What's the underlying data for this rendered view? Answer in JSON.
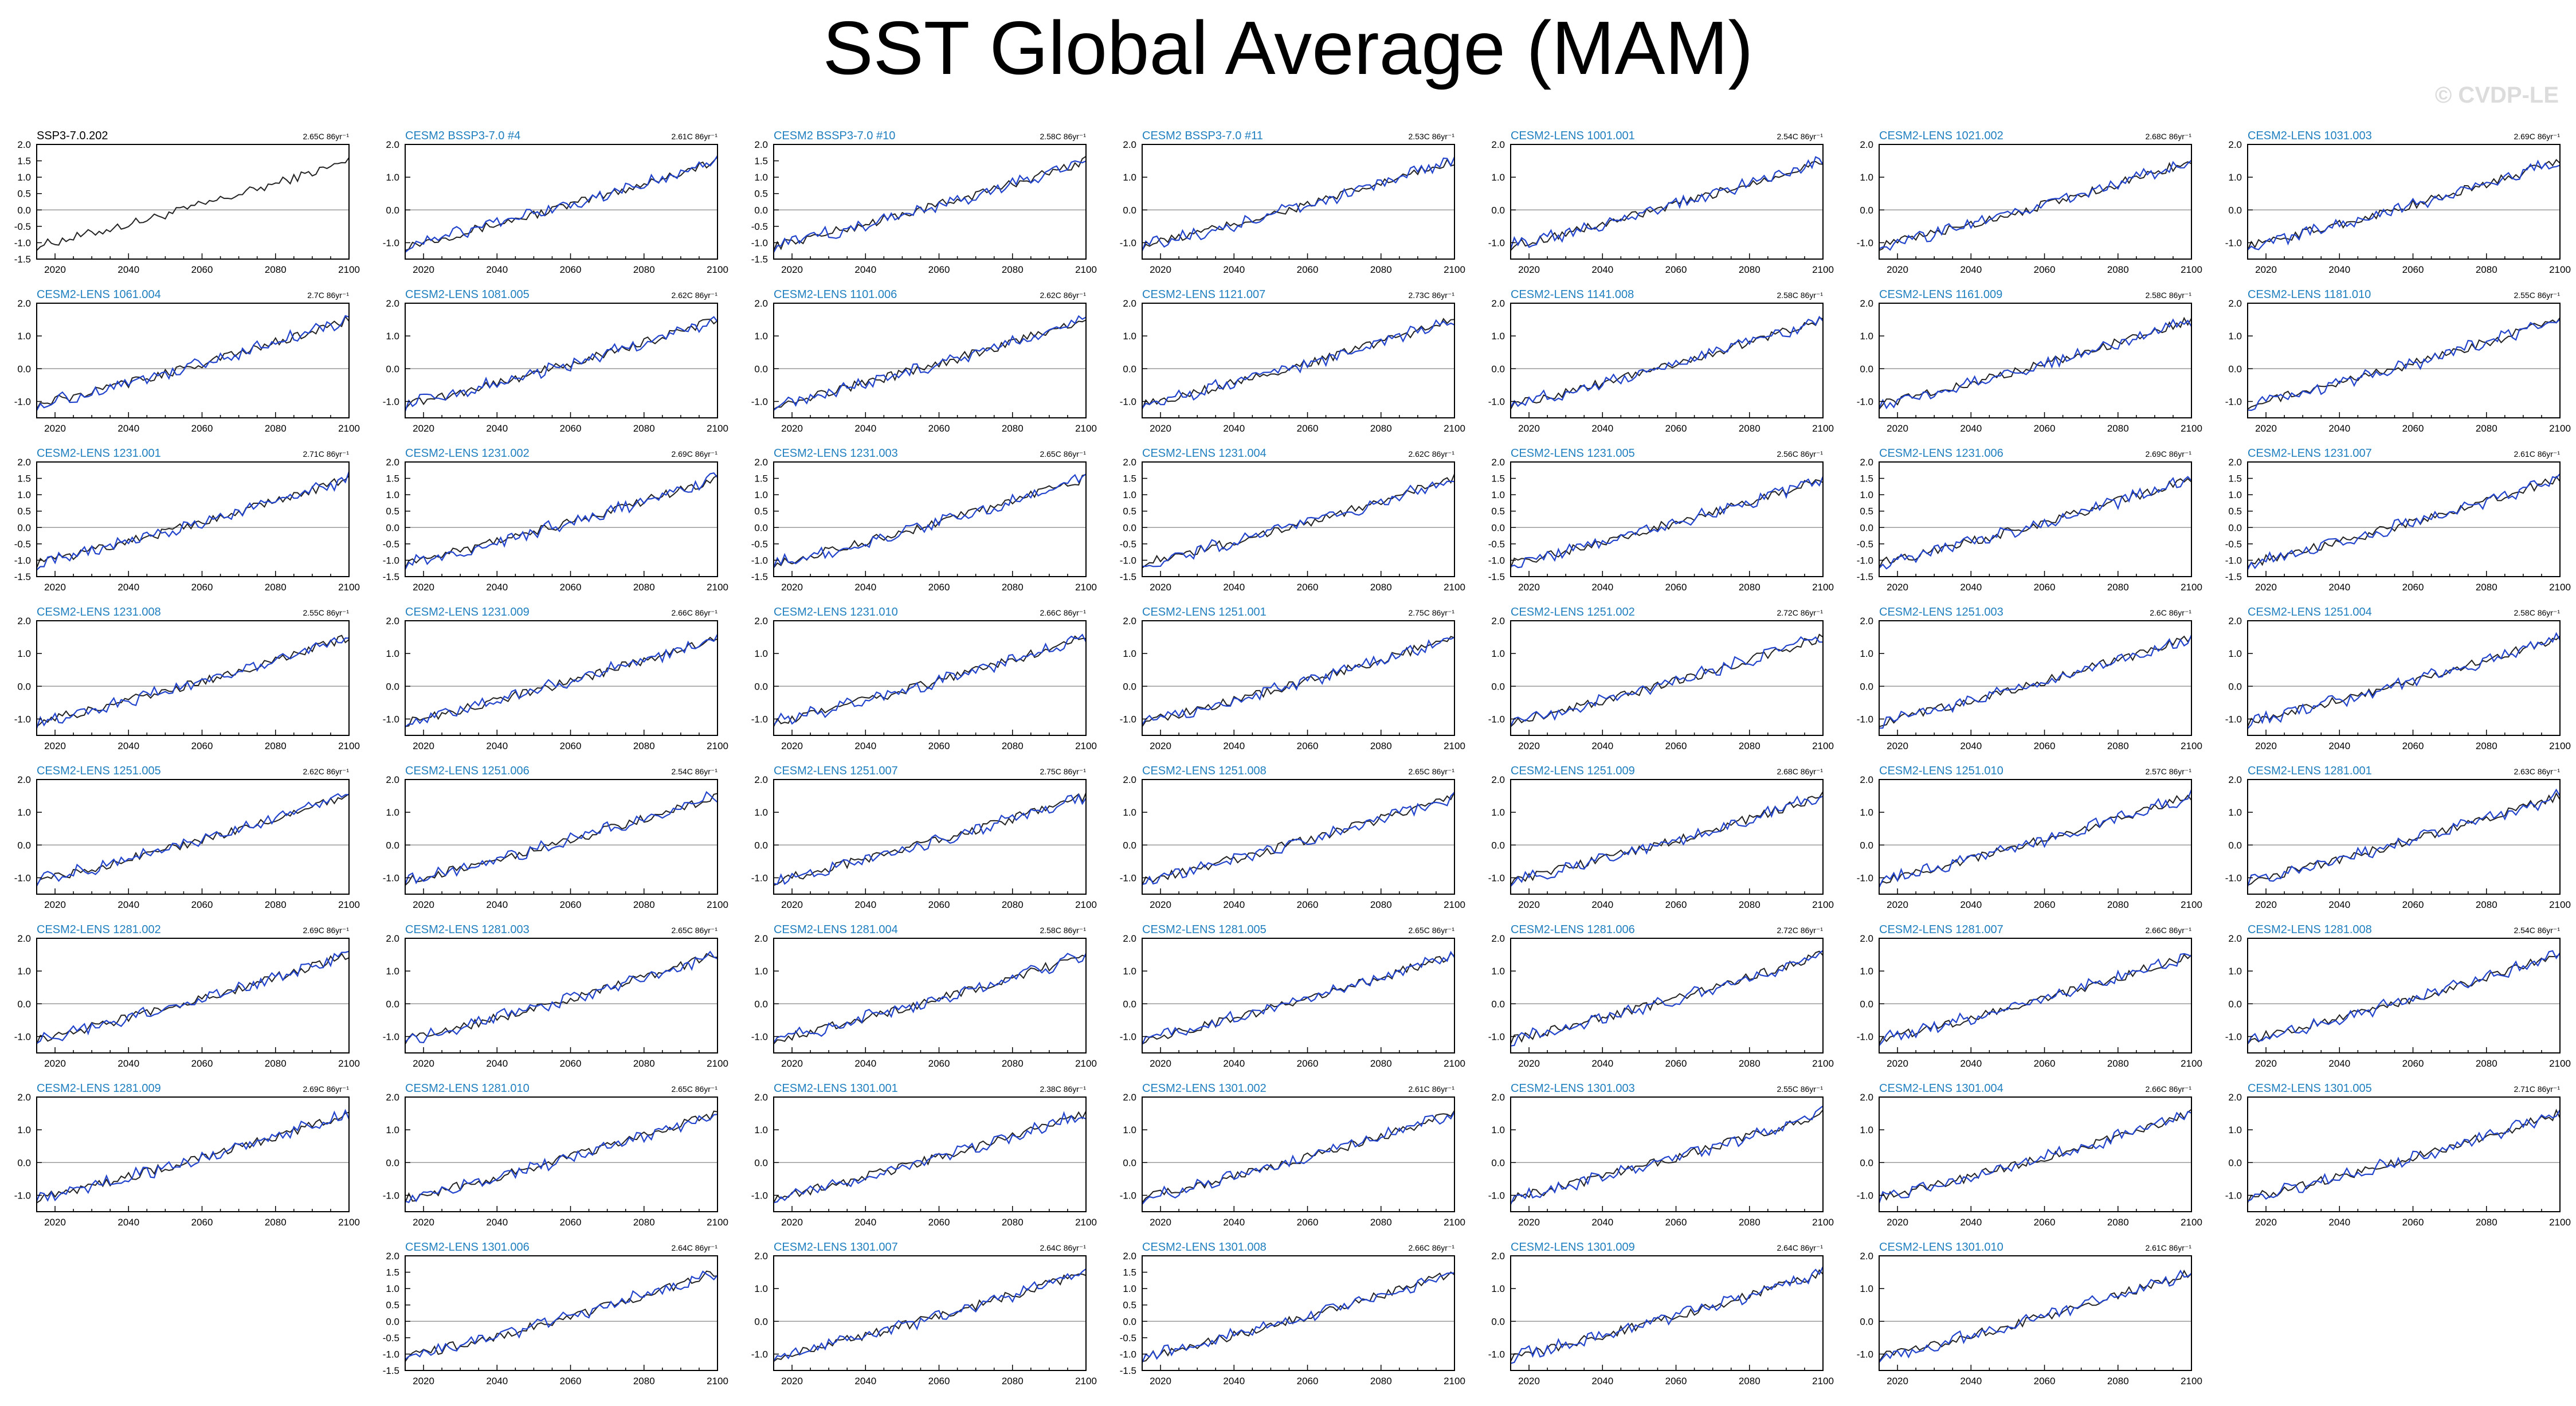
{
  "title": "SST Global Average (MAM)",
  "watermark": "© CVDP-LE",
  "chart_data": {
    "type": "line",
    "xlim": [
      2015,
      2100
    ],
    "ylim": [
      -1.5,
      2.0
    ],
    "x_ticks": [
      2020,
      2040,
      2060,
      2080,
      2100
    ],
    "x_tick_labels": [
      "2020",
      "2040",
      "2060",
      "2080",
      "2100"
    ],
    "y_ticks_full": [
      "2.0",
      "1.5",
      "1.0",
      "0.5",
      "0.0",
      "-0.5",
      "-1.0",
      "-1.5"
    ],
    "y_ticks_short": [
      "2.0",
      "1.0",
      "0.0",
      "-1.0"
    ],
    "start_year": 2015,
    "end_year": 2100,
    "anomaly_start": -1.1,
    "anomaly_end": 1.5,
    "grid": false,
    "panels": [
      {
        "name": "SSP3-7.0.202",
        "trend": "2.65C 86yr⁻¹",
        "obs": true
      },
      {
        "name": "CESM2 BSSP3-7.0 #4",
        "trend": "2.61C 86yr⁻¹"
      },
      {
        "name": "CESM2 BSSP3-7.0 #10",
        "trend": "2.58C 86yr⁻¹"
      },
      {
        "name": "CESM2 BSSP3-7.0 #11",
        "trend": "2.53C 86yr⁻¹"
      },
      {
        "name": "CESM2-LENS 1001.001",
        "trend": "2.54C 86yr⁻¹"
      },
      {
        "name": "CESM2-LENS 1021.002",
        "trend": "2.68C 86yr⁻¹"
      },
      {
        "name": "CESM2-LENS 1031.003",
        "trend": "2.69C 86yr⁻¹"
      },
      {
        "name": "CESM2-LENS 1061.004",
        "trend": "2.7C 86yr⁻¹"
      },
      {
        "name": "CESM2-LENS 1081.005",
        "trend": "2.62C 86yr⁻¹"
      },
      {
        "name": "CESM2-LENS 1101.006",
        "trend": "2.62C 86yr⁻¹"
      },
      {
        "name": "CESM2-LENS 1121.007",
        "trend": "2.73C 86yr⁻¹"
      },
      {
        "name": "CESM2-LENS 1141.008",
        "trend": "2.58C 86yr⁻¹"
      },
      {
        "name": "CESM2-LENS 1161.009",
        "trend": "2.58C 86yr⁻¹"
      },
      {
        "name": "CESM2-LENS 1181.010",
        "trend": "2.55C 86yr⁻¹"
      },
      {
        "name": "CESM2-LENS 1231.001",
        "trend": "2.71C 86yr⁻¹"
      },
      {
        "name": "CESM2-LENS 1231.002",
        "trend": "2.69C 86yr⁻¹"
      },
      {
        "name": "CESM2-LENS 1231.003",
        "trend": "2.65C 86yr⁻¹"
      },
      {
        "name": "CESM2-LENS 1231.004",
        "trend": "2.62C 86yr⁻¹"
      },
      {
        "name": "CESM2-LENS 1231.005",
        "trend": "2.56C 86yr⁻¹"
      },
      {
        "name": "CESM2-LENS 1231.006",
        "trend": "2.69C 86yr⁻¹"
      },
      {
        "name": "CESM2-LENS 1231.007",
        "trend": "2.61C 86yr⁻¹"
      },
      {
        "name": "CESM2-LENS 1231.008",
        "trend": "2.55C 86yr⁻¹"
      },
      {
        "name": "CESM2-LENS 1231.009",
        "trend": "2.66C 86yr⁻¹"
      },
      {
        "name": "CESM2-LENS 1231.010",
        "trend": "2.66C 86yr⁻¹"
      },
      {
        "name": "CESM2-LENS 1251.001",
        "trend": "2.75C 86yr⁻¹"
      },
      {
        "name": "CESM2-LENS 1251.002",
        "trend": "2.72C 86yr⁻¹"
      },
      {
        "name": "CESM2-LENS 1251.003",
        "trend": "2.6C 86yr⁻¹"
      },
      {
        "name": "CESM2-LENS 1251.004",
        "trend": "2.58C 86yr⁻¹"
      },
      {
        "name": "CESM2-LENS 1251.005",
        "trend": "2.62C 86yr⁻¹"
      },
      {
        "name": "CESM2-LENS 1251.006",
        "trend": "2.54C 86yr⁻¹"
      },
      {
        "name": "CESM2-LENS 1251.007",
        "trend": "2.75C 86yr⁻¹"
      },
      {
        "name": "CESM2-LENS 1251.008",
        "trend": "2.65C 86yr⁻¹"
      },
      {
        "name": "CESM2-LENS 1251.009",
        "trend": "2.68C 86yr⁻¹"
      },
      {
        "name": "CESM2-LENS 1251.010",
        "trend": "2.57C 86yr⁻¹"
      },
      {
        "name": "CESM2-LENS 1281.001",
        "trend": "2.63C 86yr⁻¹"
      },
      {
        "name": "CESM2-LENS 1281.002",
        "trend": "2.69C 86yr⁻¹"
      },
      {
        "name": "CESM2-LENS 1281.003",
        "trend": "2.65C 86yr⁻¹"
      },
      {
        "name": "CESM2-LENS 1281.004",
        "trend": "2.58C 86yr⁻¹"
      },
      {
        "name": "CESM2-LENS 1281.005",
        "trend": "2.65C 86yr⁻¹"
      },
      {
        "name": "CESM2-LENS 1281.006",
        "trend": "2.72C 86yr⁻¹"
      },
      {
        "name": "CESM2-LENS 1281.007",
        "trend": "2.66C 86yr⁻¹"
      },
      {
        "name": "CESM2-LENS 1281.008",
        "trend": "2.54C 86yr⁻¹"
      },
      {
        "name": "CESM2-LENS 1281.009",
        "trend": "2.69C 86yr⁻¹"
      },
      {
        "name": "CESM2-LENS 1281.010",
        "trend": "2.65C 86yr⁻¹"
      },
      {
        "name": "CESM2-LENS 1301.001",
        "trend": "2.38C 86yr⁻¹"
      },
      {
        "name": "CESM2-LENS 1301.002",
        "trend": "2.61C 86yr⁻¹"
      },
      {
        "name": "CESM2-LENS 1301.003",
        "trend": "2.55C 86yr⁻¹"
      },
      {
        "name": "CESM2-LENS 1301.004",
        "trend": "2.66C 86yr⁻¹"
      },
      {
        "name": "CESM2-LENS 1301.005",
        "trend": "2.71C 86yr⁻¹"
      },
      {
        "name": "CESM2-LENS 1301.006",
        "trend": "2.64C 86yr⁻¹"
      },
      {
        "name": "CESM2-LENS 1301.007",
        "trend": "2.64C 86yr⁻¹"
      },
      {
        "name": "CESM2-LENS 1301.008",
        "trend": "2.66C 86yr⁻¹"
      },
      {
        "name": "CESM2-LENS 1301.009",
        "trend": "2.64C 86yr⁻¹"
      },
      {
        "name": "CESM2-LENS 1301.010",
        "trend": "2.61C 86yr⁻¹"
      }
    ]
  }
}
